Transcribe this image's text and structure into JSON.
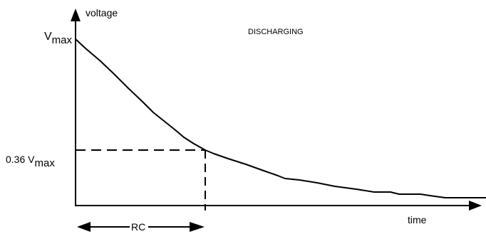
{
  "diagram": {
    "title": "DISCHARGING",
    "y_axis_label": "voltage",
    "x_axis_label": "time",
    "vmax_label": {
      "base": "V",
      "sub": "max"
    },
    "threshold_label": {
      "prefix": "0.36 V",
      "sub": "max"
    },
    "time_constant_label": "RC",
    "colors": {
      "ink": "#000000",
      "background": "#ffffff"
    }
  }
}
